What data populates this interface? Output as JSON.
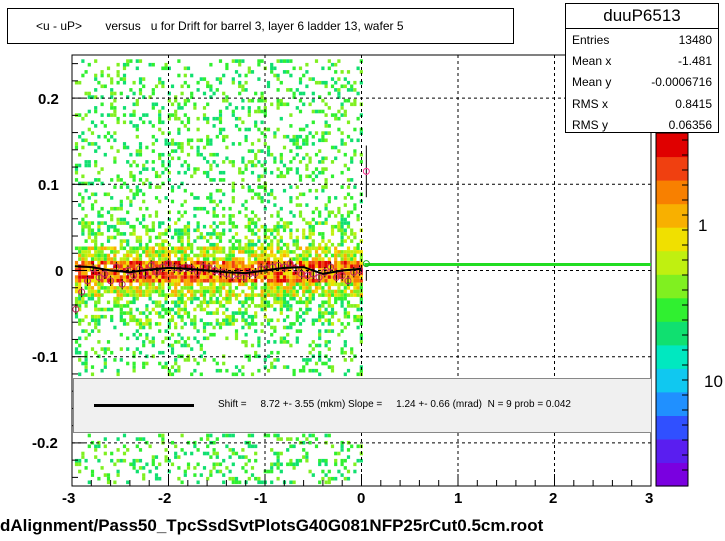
{
  "chart_data": {
    "type": "heatmap",
    "title": "<u - uP>       versus   u for Drift for barrel 3, layer 6 ladder 13, wafer 5",
    "xlim": [
      -3,
      3
    ],
    "ylim": [
      -0.25,
      0.25
    ],
    "x_ticks": [
      "-3",
      "-2",
      "-1",
      "0",
      "1",
      "2",
      "3"
    ],
    "y_ticks": [
      "0.2",
      "0.1",
      "0",
      "-0.1",
      "-0.2"
    ],
    "z_ticks": [
      "1",
      "10"
    ],
    "grid": true,
    "profile_points": {
      "x": [
        -2.96,
        -2.9,
        -2.84,
        -2.78,
        -2.72,
        -2.66,
        -2.6,
        -2.54,
        -2.48,
        -2.42,
        -2.36,
        -2.3,
        -2.24,
        -2.18,
        -2.12,
        -2.06,
        -2.0,
        -1.94,
        -1.88,
        -1.82,
        -1.76,
        -1.7,
        -1.64,
        -1.58,
        -1.52,
        -1.46,
        -1.4,
        -1.34,
        -1.28,
        -1.22,
        -1.16,
        -1.1,
        -1.04,
        -0.98,
        -0.92,
        -0.86,
        -0.8,
        -0.74,
        -0.68,
        -0.62,
        -0.56,
        -0.5,
        -0.44,
        -0.38,
        -0.32,
        -0.26,
        -0.2,
        -0.14,
        -0.08,
        -0.02,
        0.05
      ],
      "y": [
        -0.045,
        -0.025,
        -0.012,
        0.002,
        -0.008,
        -0.004,
        -0.012,
        0.004,
        -0.016,
        0.0,
        -0.006,
        0.002,
        -0.004,
        0.006,
        -0.002,
        0.004,
        0.008,
        0.003,
        0.002,
        0.004,
        0.002,
        -0.002,
        0.004,
        0.003,
        0.0,
        -0.002,
        -0.004,
        -0.006,
        -0.004,
        -0.008,
        -0.004,
        -0.003,
        0.002,
        0.003,
        0.004,
        0.006,
        0.004,
        0.008,
        0.002,
        -0.004,
        -0.006,
        -0.004,
        -0.008,
        -0.002,
        0.004,
        -0.008,
        -0.006,
        -0.012,
        -0.002,
        0.0,
        0.115
      ]
    },
    "fit_curve": {
      "x": [
        -2.97,
        -2.8,
        -2.6,
        -2.4,
        -2.2,
        -2.0,
        -1.8,
        -1.6,
        -1.4,
        -1.2,
        -1.0,
        -0.8,
        -0.6,
        -0.4,
        -0.2,
        0.0
      ],
      "y": [
        0.005,
        0.004,
        0.0,
        -0.002,
        0.001,
        0.003,
        0.002,
        0.0,
        -0.002,
        -0.003,
        0.0,
        0.003,
        0.004,
        -0.004,
        0.0,
        0.002
      ]
    },
    "green_line_y": 0.007
  },
  "stats": {
    "title": "duuP6513",
    "rows": [
      {
        "k": "Entries",
        "v": "13480"
      },
      {
        "k": "Mean x",
        "v": "-1.481"
      },
      {
        "k": "Mean y",
        "v": "-0.0006716"
      },
      {
        "k": "RMS x",
        "v": "0.8415"
      },
      {
        "k": "RMS y",
        "v": "0.06356"
      }
    ]
  },
  "fit_text": "Shift =     8.72 +- 3.55 (mkm) Slope =     1.24 +- 0.66 (mrad)  N = 9 prob = 0.042",
  "footer": "dAlignment/Pass50_TpcSsdSvtPlotsG40G081NFP25rCut0.5cm.root",
  "colors": {
    "palette": [
      "#7a00e0",
      "#5a1ef0",
      "#3050ff",
      "#2090ff",
      "#10c8f0",
      "#00e8c0",
      "#10e070",
      "#30f030",
      "#80f020",
      "#c0f010",
      "#f0e000",
      "#f8b000",
      "#f88000",
      "#f04010",
      "#e00000"
    ]
  }
}
